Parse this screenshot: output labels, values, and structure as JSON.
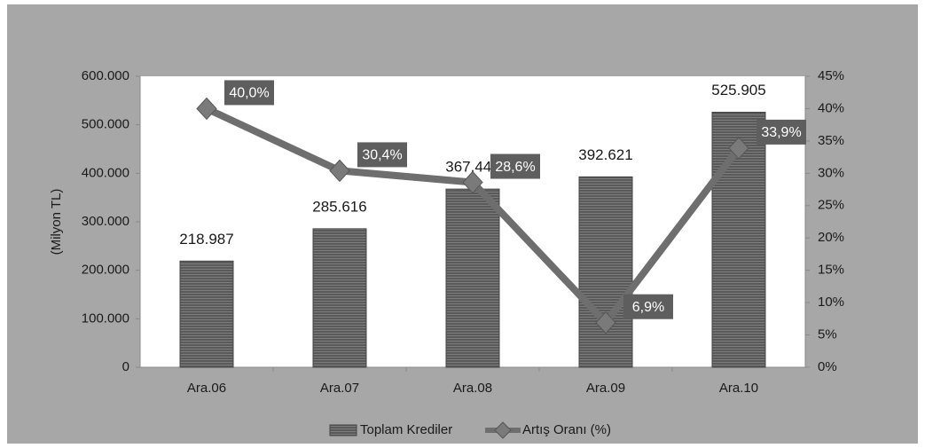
{
  "chart_data": {
    "type": "bar",
    "categories": [
      "Ara.06",
      "Ara.07",
      "Ara.08",
      "Ara.09",
      "Ara.10"
    ],
    "ylabel": "(Milyon TL)",
    "ylim": [
      0,
      600000
    ],
    "yticks": [
      0,
      {
        "value": 100000,
        "label": "100.000"
      },
      {
        "value": 200000,
        "label": "200.000"
      },
      {
        "value": 300000,
        "label": "300.000"
      },
      {
        "value": 400000,
        "label": "400.000"
      },
      {
        "value": 500000,
        "label": "500.000"
      },
      {
        "value": 600000,
        "label": "600.000"
      }
    ],
    "y2lim": [
      0,
      45
    ],
    "y2ticks": [
      {
        "value": 0,
        "label": "0%"
      },
      {
        "value": 5,
        "label": "5%"
      },
      {
        "value": 10,
        "label": "10%"
      },
      {
        "value": 15,
        "label": "15%"
      },
      {
        "value": 20,
        "label": "20%"
      },
      {
        "value": 25,
        "label": "25%"
      },
      {
        "value": 30,
        "label": "30%"
      },
      {
        "value": 35,
        "label": "35%"
      },
      {
        "value": 40,
        "label": "40%"
      },
      {
        "value": 45,
        "label": "45%"
      }
    ],
    "series": [
      {
        "name": "Toplam Krediler",
        "type": "bar",
        "color": "#5a5a5a",
        "values": [
          218987,
          285616,
          367445,
          392621,
          525905
        ],
        "value_labels": [
          "218.987",
          "285.616",
          "367.445",
          "392.621",
          "525.905"
        ]
      },
      {
        "name": "Artış Oranı (%)",
        "type": "line",
        "axis": "y2",
        "color": "#6e6e6e",
        "values": [
          40.0,
          30.4,
          28.6,
          6.9,
          33.9
        ],
        "value_labels": [
          "40,0%",
          "30,4%",
          "28,6%",
          "6,9%",
          "33,9%"
        ]
      }
    ],
    "legend": "bottom"
  }
}
